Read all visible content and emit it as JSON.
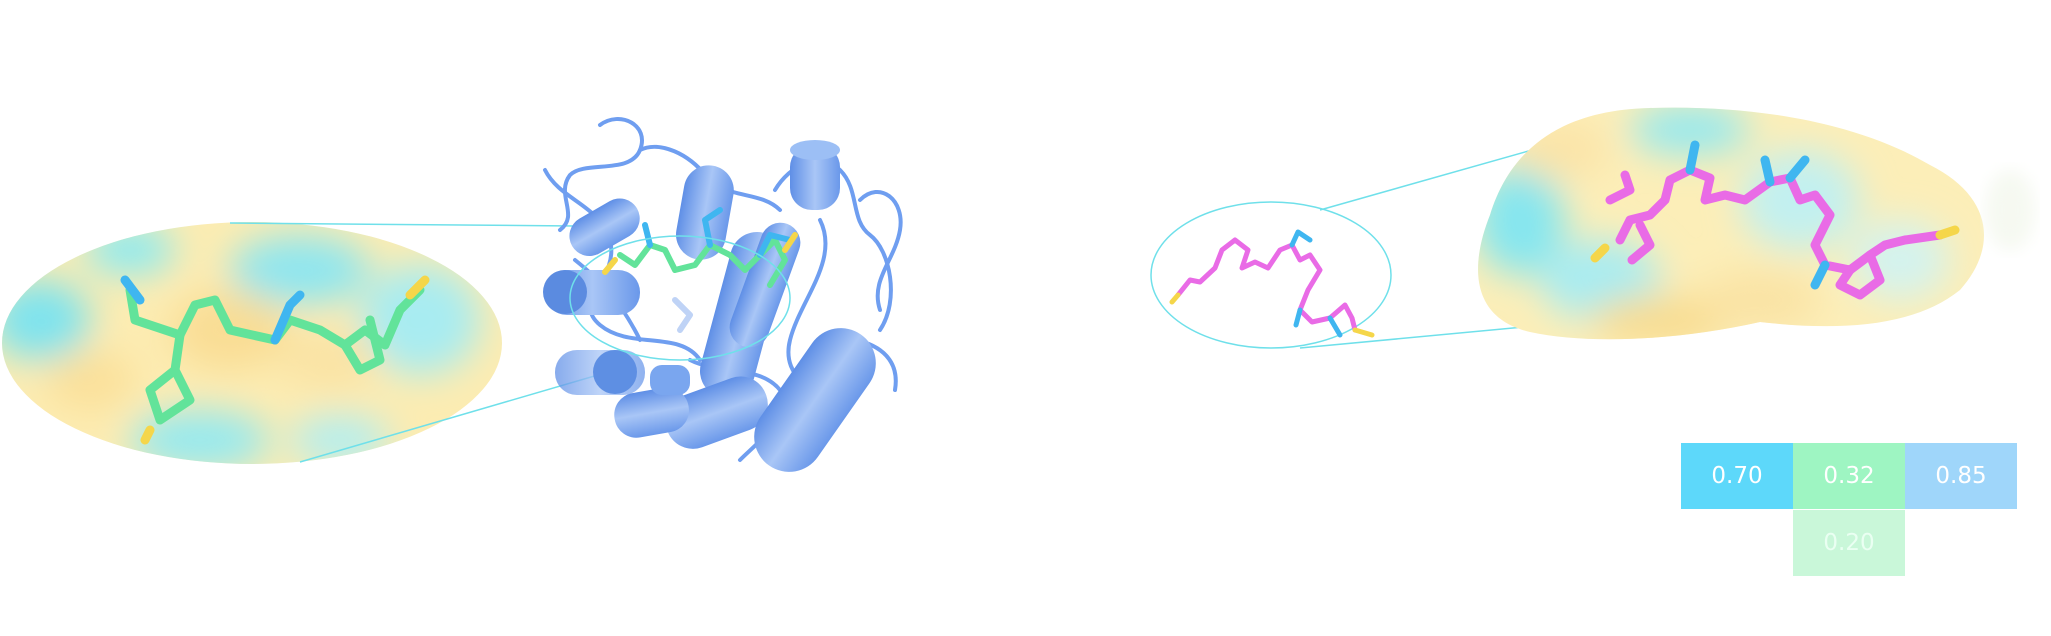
{
  "colors": {
    "protein": "#6f9ef0",
    "ligand_left": "#62e39a",
    "ligand_right": "#e96be6",
    "heteroatom": "#3fb6f0",
    "surface_hydrophobic": "#fbe7a0",
    "surface_polar": "#7fe6ef",
    "connector": "#6fe0ea"
  },
  "scores": {
    "cell_a": "0.70",
    "cell_b": "0.32",
    "cell_c": "0.85",
    "cell_d": "0.20"
  }
}
